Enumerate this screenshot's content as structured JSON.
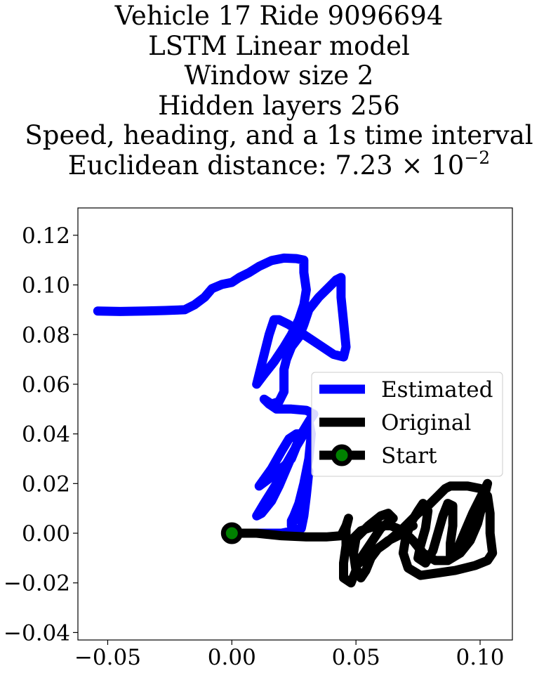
{
  "title_lines": [
    "Vehicle 17 Ride 9096694",
    "LSTM Linear model",
    "Window size 2",
    "Hidden layers 256",
    "Speed, heading, and a 1s time interval"
  ],
  "distance": {
    "prefix": "Euclidean distance: 7.23",
    "times": "×",
    "base": "10",
    "exponent": "−2"
  },
  "chart_data": {
    "type": "line",
    "xlim": [
      -0.062,
      0.113
    ],
    "ylim": [
      -0.043,
      0.131
    ],
    "x_ticks": [
      -0.05,
      0.0,
      0.05,
      0.1
    ],
    "x_tick_labels": [
      "−0.05",
      "0.00",
      "0.05",
      "0.10"
    ],
    "y_ticks": [
      -0.04,
      -0.02,
      0.0,
      0.02,
      0.04,
      0.06,
      0.08,
      0.1,
      0.12
    ],
    "y_tick_labels": [
      "−0.04",
      "−0.02",
      "0.00",
      "0.02",
      "0.04",
      "0.06",
      "0.08",
      "0.10",
      "0.12"
    ],
    "grid": false,
    "legend_position": "center-right",
    "series": [
      {
        "name": "Estimated",
        "color": "#0000ff",
        "points": [
          [
            -0.054,
            0.0895
          ],
          [
            -0.045,
            0.0893
          ],
          [
            -0.035,
            0.0895
          ],
          [
            -0.027,
            0.0897
          ],
          [
            -0.019,
            0.09
          ],
          [
            -0.015,
            0.092
          ],
          [
            -0.011,
            0.095
          ],
          [
            -0.008,
            0.0985
          ],
          [
            -0.004,
            0.1002
          ],
          [
            0.0,
            0.101
          ],
          [
            0.003,
            0.103
          ],
          [
            0.007,
            0.105
          ],
          [
            0.011,
            0.1075
          ],
          [
            0.016,
            0.1098
          ],
          [
            0.021,
            0.1108
          ],
          [
            0.026,
            0.1106
          ],
          [
            0.029,
            0.11
          ],
          [
            0.029,
            0.105
          ],
          [
            0.03,
            0.098
          ],
          [
            0.029,
            0.092
          ],
          [
            0.027,
            0.086
          ],
          [
            0.024,
            0.08
          ],
          [
            0.021,
            0.075
          ],
          [
            0.019,
            0.072
          ],
          [
            0.017,
            0.069
          ],
          [
            0.013,
            0.064
          ],
          [
            0.01,
            0.06
          ],
          [
            0.011,
            0.064
          ],
          [
            0.013,
            0.072
          ],
          [
            0.015,
            0.08
          ],
          [
            0.017,
            0.086
          ],
          [
            0.019,
            0.086
          ],
          [
            0.023,
            0.084
          ],
          [
            0.029,
            0.08
          ],
          [
            0.035,
            0.076
          ],
          [
            0.041,
            0.072
          ],
          [
            0.045,
            0.071
          ],
          [
            0.046,
            0.075
          ],
          [
            0.045,
            0.085
          ],
          [
            0.044,
            0.095
          ],
          [
            0.044,
            0.103
          ],
          [
            0.042,
            0.102
          ],
          [
            0.039,
            0.099
          ],
          [
            0.035,
            0.095
          ],
          [
            0.031,
            0.09
          ],
          [
            0.029,
            0.084
          ],
          [
            0.027,
            0.079
          ],
          [
            0.024,
            0.075
          ],
          [
            0.022,
            0.07
          ],
          [
            0.021,
            0.066
          ],
          [
            0.021,
            0.061
          ],
          [
            0.021,
            0.057
          ],
          [
            0.019,
            0.053
          ],
          [
            0.016,
            0.052
          ],
          [
            0.013,
            0.054
          ],
          [
            0.015,
            0.052
          ],
          [
            0.018,
            0.05
          ],
          [
            0.024,
            0.05
          ],
          [
            0.03,
            0.0495
          ],
          [
            0.033,
            0.048
          ],
          [
            0.031,
            0.045
          ],
          [
            0.028,
            0.04
          ],
          [
            0.026,
            0.035
          ],
          [
            0.024,
            0.03
          ],
          [
            0.021,
            0.027
          ],
          [
            0.018,
            0.025
          ],
          [
            0.015,
            0.022
          ],
          [
            0.011,
            0.019
          ],
          [
            0.016,
            0.026
          ],
          [
            0.02,
            0.033
          ],
          [
            0.023,
            0.038
          ],
          [
            0.026,
            0.04
          ],
          [
            0.028,
            0.04
          ],
          [
            0.025,
            0.033
          ],
          [
            0.022,
            0.026
          ],
          [
            0.019,
            0.019
          ],
          [
            0.016,
            0.013
          ],
          [
            0.012,
            0.008
          ],
          [
            0.01,
            0.007
          ],
          [
            0.013,
            0.012
          ],
          [
            0.018,
            0.02
          ],
          [
            0.022,
            0.028
          ],
          [
            0.026,
            0.035
          ],
          [
            0.029,
            0.04
          ],
          [
            0.031,
            0.045
          ],
          [
            0.032,
            0.04
          ],
          [
            0.031,
            0.03
          ],
          [
            0.029,
            0.02
          ],
          [
            0.027,
            0.012
          ],
          [
            0.025,
            0.007
          ],
          [
            0.024,
            0.005
          ],
          [
            0.024,
            0.003
          ],
          [
            0.026,
            0.007
          ],
          [
            0.029,
            0.017
          ],
          [
            0.031,
            0.025
          ],
          [
            0.03,
            0.015
          ],
          [
            0.029,
            0.007
          ],
          [
            0.028,
            0.002
          ],
          [
            0.025,
            0.001
          ],
          [
            0.02,
            0.0
          ],
          [
            0.015,
            0.0
          ],
          [
            0.008,
            0.0
          ],
          [
            0.003,
            0.0
          ],
          [
            0.0,
            0.0
          ]
        ]
      },
      {
        "name": "Original",
        "color": "#000000",
        "points": [
          [
            0.0,
            0.0
          ],
          [
            0.01,
            0.0
          ],
          [
            0.02,
            -0.001
          ],
          [
            0.03,
            -0.0015
          ],
          [
            0.038,
            -0.0015
          ],
          [
            0.044,
            -0.001
          ],
          [
            0.046,
            0.003
          ],
          [
            0.047,
            0.006
          ],
          [
            0.046,
            0.002
          ],
          [
            0.046,
            -0.005
          ],
          [
            0.045,
            -0.012
          ],
          [
            0.045,
            -0.018
          ],
          [
            0.048,
            -0.02
          ],
          [
            0.05,
            -0.015
          ],
          [
            0.049,
            -0.008
          ],
          [
            0.05,
            -0.002
          ],
          [
            0.055,
            0.003
          ],
          [
            0.06,
            0.007
          ],
          [
            0.063,
            0.008
          ],
          [
            0.065,
            0.006
          ],
          [
            0.06,
            0.002
          ],
          [
            0.056,
            -0.004
          ],
          [
            0.052,
            -0.01
          ],
          [
            0.05,
            -0.013
          ],
          [
            0.055,
            -0.009
          ],
          [
            0.062,
            -0.004
          ],
          [
            0.068,
            0.001
          ],
          [
            0.072,
            0.005
          ],
          [
            0.075,
            0.008
          ],
          [
            0.079,
            0.011
          ],
          [
            0.083,
            0.015
          ],
          [
            0.086,
            0.018
          ],
          [
            0.088,
            0.019
          ],
          [
            0.095,
            0.019
          ],
          [
            0.1,
            0.018
          ],
          [
            0.103,
            0.015
          ],
          [
            0.104,
            0.008
          ],
          [
            0.104,
            0.0
          ],
          [
            0.105,
            -0.008
          ],
          [
            0.103,
            -0.011
          ],
          [
            0.098,
            -0.013
          ],
          [
            0.09,
            -0.015
          ],
          [
            0.083,
            -0.016
          ],
          [
            0.076,
            -0.017
          ],
          [
            0.071,
            -0.014
          ],
          [
            0.069,
            -0.008
          ],
          [
            0.07,
            -0.002
          ],
          [
            0.072,
            0.004
          ],
          [
            0.075,
            0.009
          ],
          [
            0.077,
            0.012
          ],
          [
            0.079,
            0.009
          ],
          [
            0.078,
            0.002
          ],
          [
            0.076,
            -0.005
          ],
          [
            0.075,
            -0.01
          ],
          [
            0.078,
            -0.012
          ],
          [
            0.081,
            -0.007
          ],
          [
            0.083,
            0.0
          ],
          [
            0.085,
            0.007
          ],
          [
            0.087,
            0.012
          ],
          [
            0.089,
            0.011
          ],
          [
            0.089,
            0.003
          ],
          [
            0.088,
            -0.004
          ],
          [
            0.088,
            -0.009
          ],
          [
            0.091,
            -0.006
          ],
          [
            0.094,
            0.001
          ],
          [
            0.097,
            0.008
          ],
          [
            0.1,
            0.014
          ],
          [
            0.102,
            0.018
          ],
          [
            0.103,
            0.02
          ],
          [
            0.101,
            0.012
          ],
          [
            0.099,
            0.004
          ],
          [
            0.096,
            -0.003
          ],
          [
            0.092,
            -0.008
          ],
          [
            0.087,
            -0.011
          ],
          [
            0.082,
            -0.011
          ],
          [
            0.077,
            -0.008
          ],
          [
            0.073,
            -0.003
          ],
          [
            0.069,
            0.001
          ],
          [
            0.064,
            0.003
          ],
          [
            0.058,
            0.003
          ],
          [
            0.052,
            0.001
          ],
          [
            0.049,
            -0.002
          ],
          [
            0.049,
            -0.008
          ],
          [
            0.05,
            -0.014
          ],
          [
            0.052,
            -0.018
          ],
          [
            0.054,
            -0.015
          ],
          [
            0.056,
            -0.01
          ],
          [
            0.059,
            -0.006
          ],
          [
            0.063,
            -0.003
          ],
          [
            0.067,
            -0.001
          ],
          [
            0.071,
            0.002
          ],
          [
            0.073,
            0.003
          ]
        ]
      }
    ],
    "start": {
      "name": "Start",
      "x": 0.0,
      "y": 0.0,
      "color": "#008000",
      "edgecolor": "#000000"
    }
  }
}
